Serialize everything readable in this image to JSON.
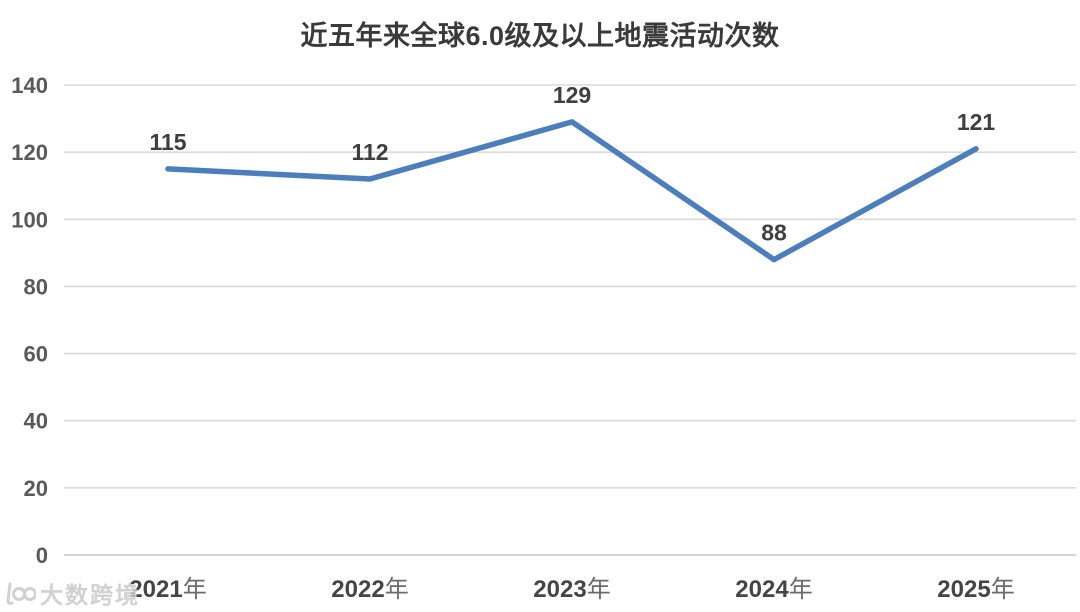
{
  "chart_data": {
    "type": "line",
    "title": "近五年来全球6.0级及以上地震活动次数",
    "categories": [
      "2021年",
      "2022年",
      "2023年",
      "2024年",
      "2025年"
    ],
    "values": [
      115,
      112,
      129,
      88,
      121
    ],
    "y_ticks": [
      0,
      20,
      40,
      60,
      80,
      100,
      120,
      140
    ],
    "ylim": [
      0,
      140
    ],
    "xlabel": "",
    "ylabel": "",
    "grid": true,
    "legend_position": "none",
    "line_color": "#4a7ebd",
    "gridline_color": "#dadada",
    "axis_line_color": "#c6c6c6",
    "value_label_color": "#3f3f3f",
    "y_tick_color": "#595959",
    "x_tick_number_color": "#454545",
    "x_tick_suffix_color": "#6b6b6b",
    "title_color": "#3a3a3a"
  },
  "watermark": {
    "text": "大数跨境",
    "icon": "hundred-logo-icon",
    "color": "#c9c9c9"
  }
}
